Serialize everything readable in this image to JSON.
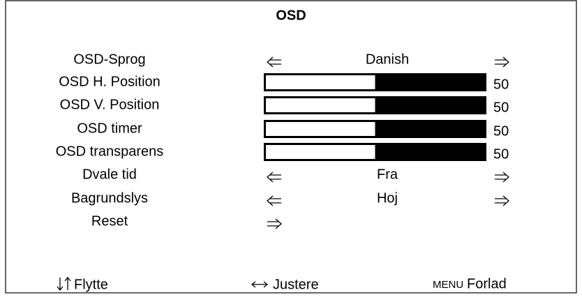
{
  "title": "OSD",
  "rows": [
    {
      "label": "OSD-Sprog",
      "kind": "select",
      "value": "Danish"
    },
    {
      "label": "OSD H. Position",
      "kind": "slider",
      "value": 50
    },
    {
      "label": "OSD V. Position",
      "kind": "slider",
      "value": 50
    },
    {
      "label": "OSD timer",
      "kind": "slider",
      "value": 50
    },
    {
      "label": "OSD transparens",
      "kind": "slider",
      "value": 50
    },
    {
      "label": "Dvale tid",
      "kind": "select",
      "value": "Fra"
    },
    {
      "label": "Bagrundslys",
      "kind": "select",
      "value": "Hoj"
    },
    {
      "label": "Reset",
      "kind": "action"
    }
  ],
  "slider_range": [
    0,
    100
  ],
  "footer": [
    {
      "label": "Flytte"
    },
    {
      "label": "Justere"
    },
    {
      "key": "MENU",
      "label": "Forlad"
    }
  ]
}
